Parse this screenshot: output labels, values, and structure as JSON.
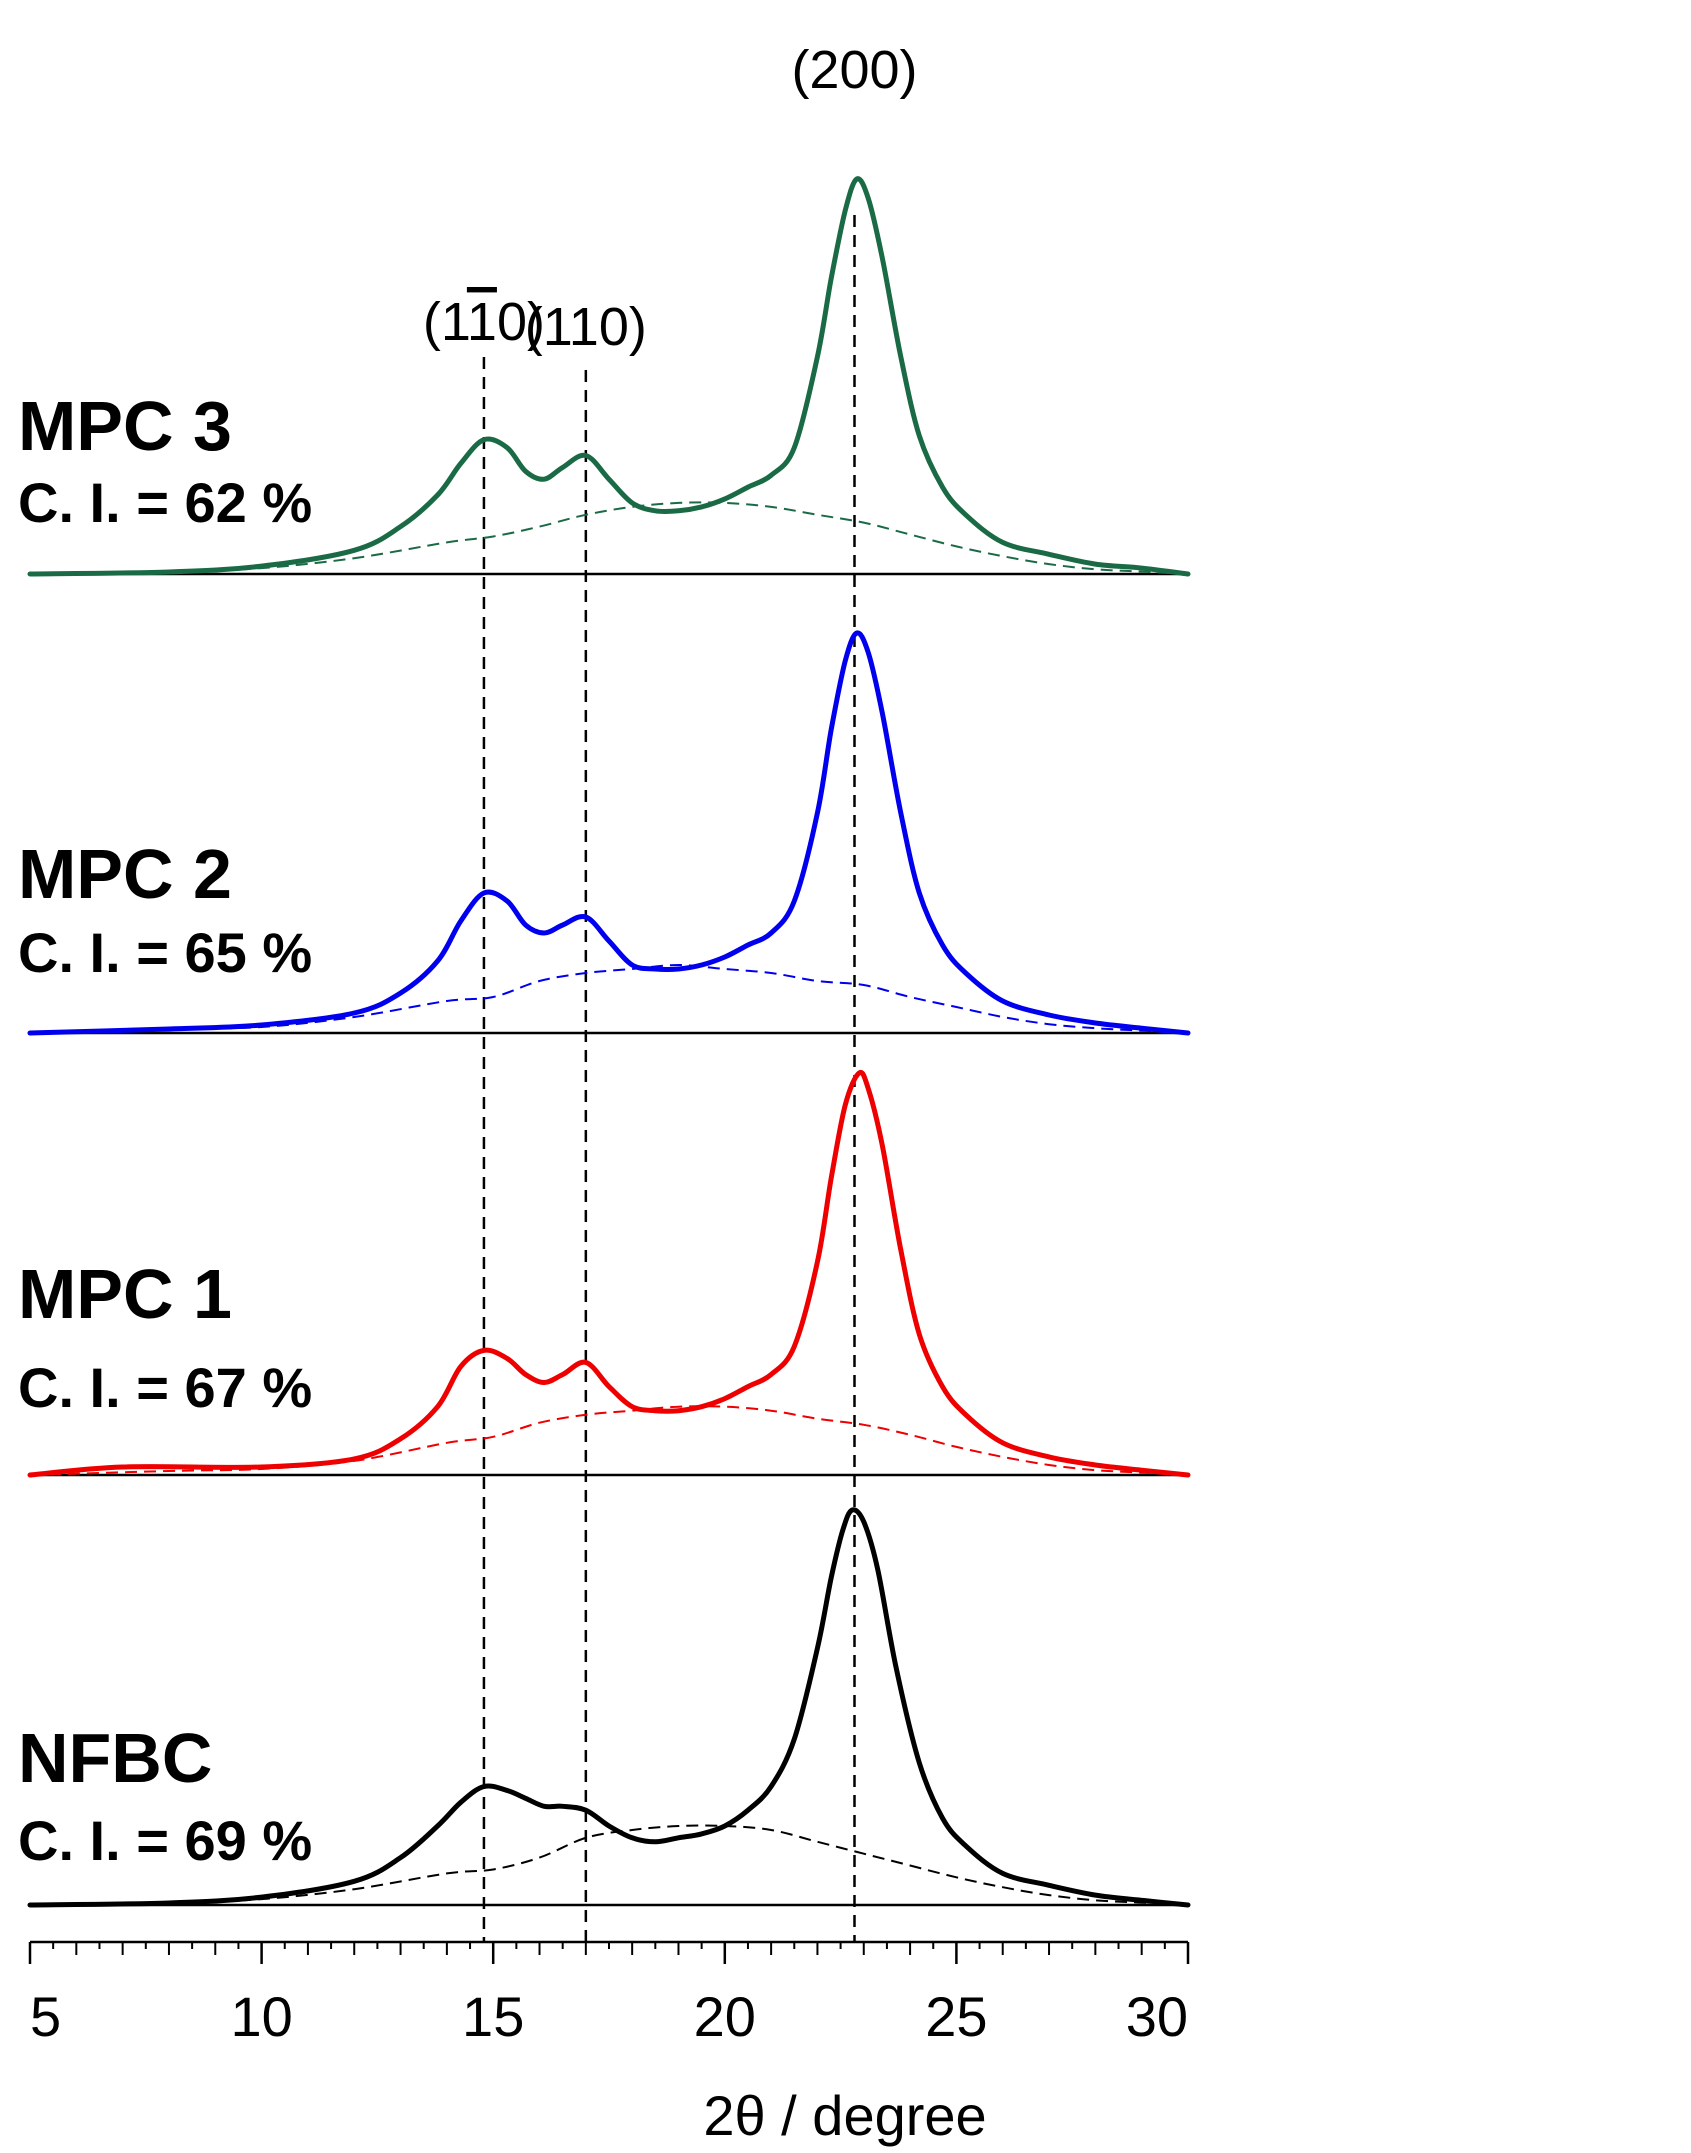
{
  "chart_data": {
    "type": "line",
    "title": "",
    "xlabel": "2θ / degree",
    "ylabel": "",
    "xlim": [
      5,
      30
    ],
    "x_ticks": [
      "5",
      "10",
      "15",
      "20",
      "25",
      "30"
    ],
    "peak_markers": [
      {
        "label": "(110)",
        "overbar_char_index": 2,
        "x": 14.8
      },
      {
        "label": "(110)",
        "x": 17.0
      },
      {
        "label": "(200)",
        "x": 22.8
      }
    ],
    "series": [
      {
        "name": "MPC 3",
        "ci_label": "C. I. = 62 %",
        "color": "#1a6b45",
        "x": [
          5,
          8,
          10,
          12,
          13,
          13.8,
          14.3,
          14.8,
          15.3,
          15.7,
          16.1,
          16.5,
          17.0,
          17.5,
          18.0,
          18.5,
          19.0,
          19.5,
          20.0,
          20.5,
          21.0,
          21.5,
          22.0,
          22.3,
          22.6,
          22.85,
          23.1,
          23.4,
          23.8,
          24.2,
          24.7,
          25.2,
          26.0,
          27.0,
          28.0,
          29.0,
          30.0
        ],
        "y": [
          0.0,
          0.005,
          0.02,
          0.06,
          0.12,
          0.2,
          0.28,
          0.34,
          0.32,
          0.26,
          0.24,
          0.27,
          0.3,
          0.24,
          0.18,
          0.16,
          0.16,
          0.17,
          0.19,
          0.22,
          0.25,
          0.32,
          0.55,
          0.75,
          0.92,
          1.0,
          0.95,
          0.8,
          0.55,
          0.35,
          0.22,
          0.15,
          0.08,
          0.05,
          0.025,
          0.015,
          0.0
        ],
        "amorphous_x": [
          5,
          8,
          10,
          12,
          14,
          15,
          16,
          17,
          18,
          19,
          20,
          21,
          22,
          23,
          24,
          25,
          26,
          27,
          28,
          29,
          30
        ],
        "amorphous_y": [
          0.0,
          0.005,
          0.015,
          0.04,
          0.08,
          0.095,
          0.12,
          0.15,
          0.17,
          0.18,
          0.18,
          0.17,
          0.15,
          0.13,
          0.1,
          0.07,
          0.045,
          0.025,
          0.012,
          0.006,
          0.0
        ]
      },
      {
        "name": "MPC 2",
        "ci_label": "C. I. = 65 %",
        "color": "#0000ee",
        "x": [
          5,
          8,
          10,
          12,
          13,
          13.8,
          14.3,
          14.8,
          15.3,
          15.7,
          16.1,
          16.5,
          17.0,
          17.5,
          18.0,
          18.5,
          19.0,
          19.5,
          20.0,
          20.5,
          21.0,
          21.5,
          22.0,
          22.3,
          22.6,
          22.85,
          23.1,
          23.4,
          23.8,
          24.2,
          24.7,
          25.2,
          26.0,
          27.0,
          28.0,
          29.0,
          30.0
        ],
        "y": [
          0.0,
          0.01,
          0.02,
          0.05,
          0.1,
          0.18,
          0.28,
          0.35,
          0.33,
          0.27,
          0.25,
          0.27,
          0.29,
          0.23,
          0.17,
          0.16,
          0.16,
          0.17,
          0.19,
          0.22,
          0.25,
          0.33,
          0.55,
          0.76,
          0.93,
          1.0,
          0.95,
          0.8,
          0.55,
          0.35,
          0.22,
          0.15,
          0.08,
          0.045,
          0.025,
          0.012,
          0.0
        ],
        "amorphous_x": [
          5,
          8,
          10,
          12,
          14,
          15,
          16,
          17,
          18,
          19,
          20,
          21,
          22,
          23,
          24,
          25,
          26,
          27,
          28,
          29,
          30
        ],
        "amorphous_y": [
          0.0,
          0.01,
          0.015,
          0.04,
          0.08,
          0.09,
          0.13,
          0.15,
          0.16,
          0.17,
          0.16,
          0.15,
          0.13,
          0.12,
          0.09,
          0.065,
          0.04,
          0.022,
          0.012,
          0.006,
          0.0
        ]
      },
      {
        "name": "MPC 1",
        "ci_label": "C. I. = 67 %",
        "color": "#ee0000",
        "x": [
          5,
          7,
          10,
          12,
          13,
          13.8,
          14.3,
          14.8,
          15.3,
          15.7,
          16.1,
          16.5,
          17.0,
          17.5,
          18.0,
          18.5,
          19.0,
          19.5,
          20.0,
          20.5,
          21.0,
          21.5,
          22.0,
          22.3,
          22.6,
          22.9,
          23.1,
          23.4,
          23.8,
          24.2,
          24.7,
          25.2,
          26.0,
          27.0,
          28.0,
          29.0,
          30.0
        ],
        "y": [
          0.0,
          0.02,
          0.02,
          0.04,
          0.09,
          0.17,
          0.27,
          0.31,
          0.29,
          0.25,
          0.23,
          0.25,
          0.28,
          0.22,
          0.17,
          0.16,
          0.16,
          0.17,
          0.19,
          0.22,
          0.25,
          0.32,
          0.53,
          0.74,
          0.92,
          1.0,
          0.96,
          0.82,
          0.56,
          0.35,
          0.22,
          0.15,
          0.08,
          0.045,
          0.025,
          0.012,
          0.0
        ],
        "amorphous_x": [
          5,
          8,
          10,
          12,
          14,
          15,
          16,
          17,
          18,
          19,
          20,
          21,
          22,
          23,
          24,
          25,
          26,
          27,
          28,
          29,
          30
        ],
        "amorphous_y": [
          0.0,
          0.01,
          0.015,
          0.035,
          0.08,
          0.095,
          0.13,
          0.15,
          0.16,
          0.17,
          0.17,
          0.16,
          0.14,
          0.125,
          0.1,
          0.07,
          0.045,
          0.025,
          0.012,
          0.006,
          0.0
        ]
      },
      {
        "name": "NFBC",
        "ci_label": "C. I. = 69 %",
        "color": "#000000",
        "x": [
          5,
          8,
          10,
          12,
          13,
          13.8,
          14.3,
          14.8,
          15.3,
          15.7,
          16.1,
          16.5,
          17.0,
          17.5,
          18.0,
          18.5,
          19.0,
          19.5,
          20.0,
          20.5,
          21.0,
          21.5,
          22.0,
          22.3,
          22.55,
          22.75,
          23.0,
          23.3,
          23.7,
          24.2,
          24.7,
          25.2,
          26.0,
          27.0,
          28.0,
          29.0,
          30.0
        ],
        "y": [
          0.0,
          0.005,
          0.02,
          0.06,
          0.12,
          0.2,
          0.26,
          0.3,
          0.29,
          0.27,
          0.25,
          0.25,
          0.24,
          0.2,
          0.17,
          0.16,
          0.17,
          0.18,
          0.2,
          0.24,
          0.3,
          0.42,
          0.65,
          0.83,
          0.95,
          1.0,
          0.97,
          0.85,
          0.6,
          0.36,
          0.22,
          0.15,
          0.08,
          0.05,
          0.025,
          0.012,
          0.0
        ],
        "amorphous_x": [
          5,
          8,
          10,
          12,
          14,
          15,
          16,
          17,
          18,
          19,
          20,
          21,
          22,
          23,
          24,
          25,
          26,
          27,
          28,
          29,
          30
        ],
        "amorphous_y": [
          0.0,
          0.005,
          0.015,
          0.04,
          0.08,
          0.09,
          0.12,
          0.17,
          0.19,
          0.2,
          0.2,
          0.19,
          0.16,
          0.13,
          0.1,
          0.07,
          0.045,
          0.025,
          0.012,
          0.006,
          0.0
        ]
      }
    ]
  }
}
